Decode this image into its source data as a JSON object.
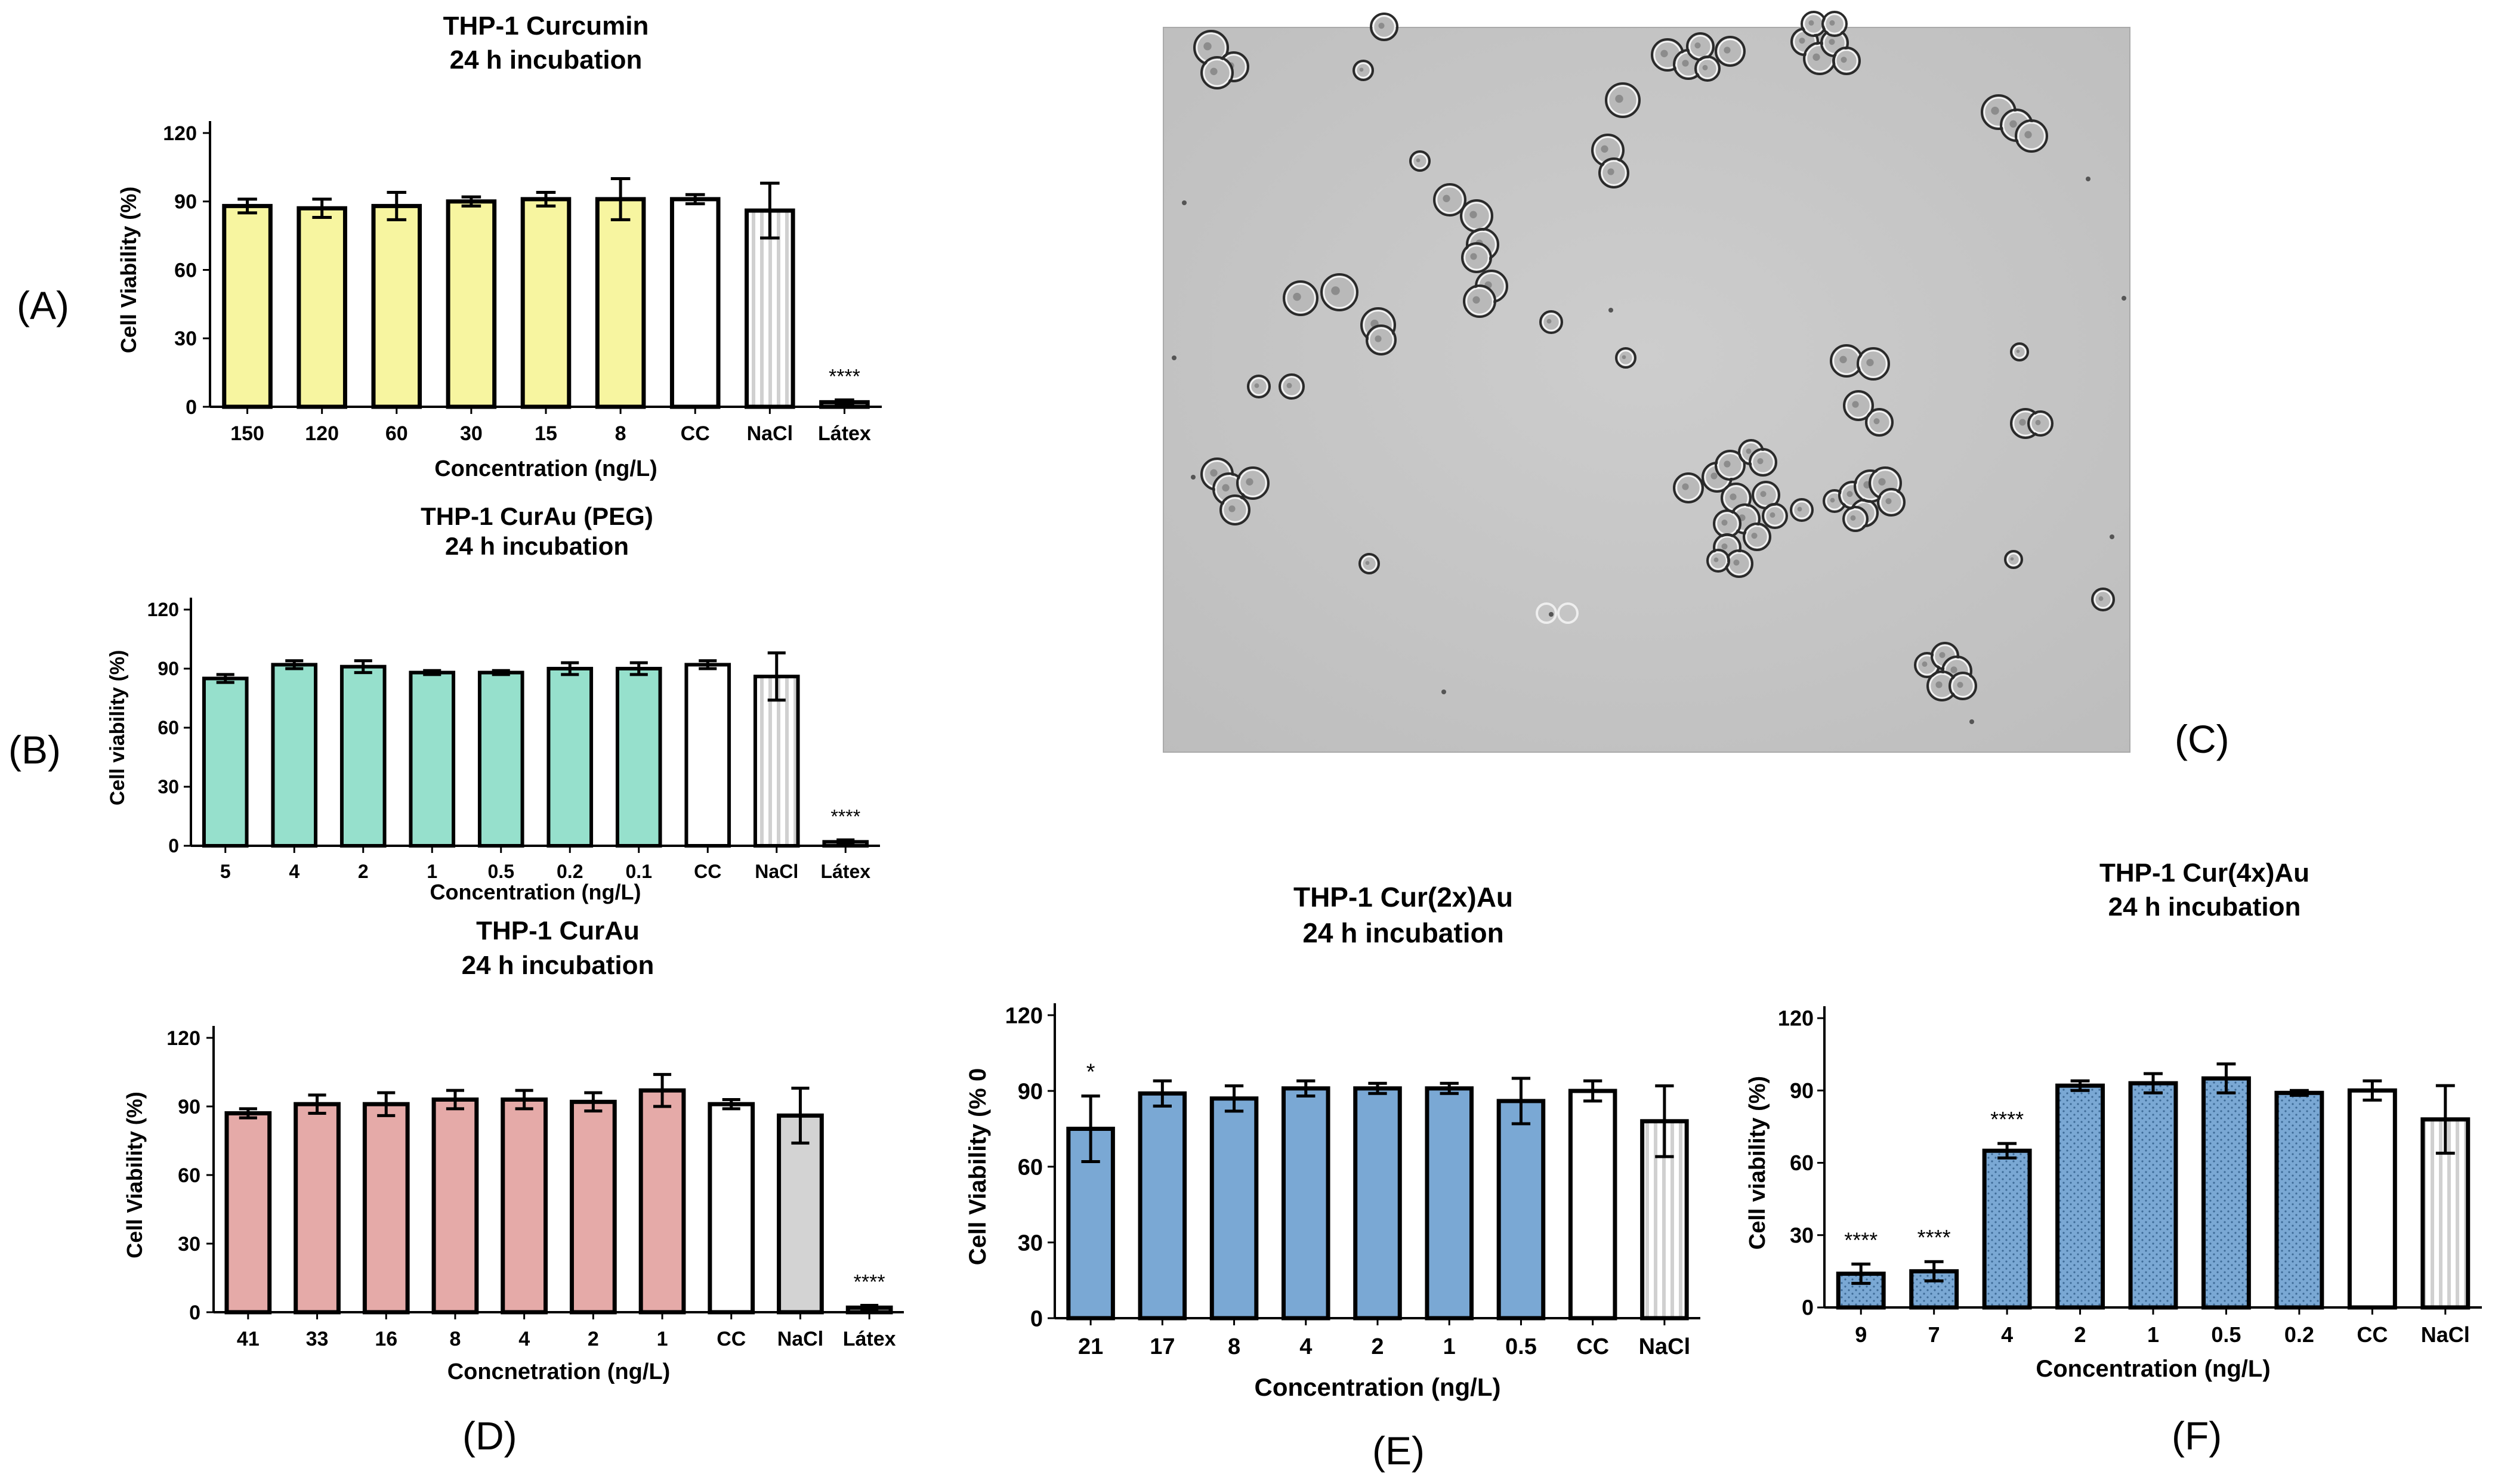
{
  "panel_labels": {
    "A": "(A)",
    "B": "(B)",
    "C": "(C)",
    "D": "(D)",
    "E": "(E)",
    "F": "(F)"
  },
  "colors": {
    "yellow": "#f7f5a0",
    "teal": "#96e0cc",
    "pink": "#e5aaa8",
    "blue": "#7aa8d4",
    "blue_dotted": "#7aa8d4",
    "cc": "#ffffff",
    "nacl_stripe": "#d9d9d9",
    "nacl_grey": "#d3d3d3",
    "micrograph_bg": "#c7c7c7"
  },
  "micrograph": {
    "description_icon": "microscopy-image-thp1-cells"
  },
  "chart_data": [
    {
      "id": "A",
      "type": "bar",
      "title": "THP-1 Curcumin",
      "subtitle": "24 h incubation",
      "xlabel": "Concentration  (ng/L)",
      "ylabel": "Cell Viability (%)",
      "ylim": [
        0,
        120
      ],
      "yticks": [
        "0",
        "30",
        "60",
        "90",
        "120"
      ],
      "categories": [
        "150",
        "120",
        "60",
        "30",
        "15",
        "8",
        "CC",
        "NaCl",
        "Látex"
      ],
      "values": [
        88,
        87,
        88,
        90,
        91,
        91,
        91,
        86,
        2
      ],
      "errors": [
        3,
        4,
        6,
        2,
        3,
        9,
        2,
        12,
        1
      ],
      "fills": [
        "yellow",
        "yellow",
        "yellow",
        "yellow",
        "yellow",
        "yellow",
        "cc",
        "nacl_stripe",
        "cc"
      ],
      "annotations": [
        {
          "index": 8,
          "text": "****"
        }
      ]
    },
    {
      "id": "B",
      "type": "bar",
      "title": "THP-1 CurAu (PEG)",
      "subtitle": "24 h incubation",
      "xlabel": "Concentration (ng/L)",
      "ylabel": "Cell viability (%)",
      "ylim": [
        0,
        120
      ],
      "yticks": [
        "0",
        "30",
        "60",
        "90",
        "120"
      ],
      "categories": [
        "5",
        "4",
        "2",
        "1",
        "0.5",
        "0.2",
        "0.1",
        "CC",
        "NaCl",
        "Látex"
      ],
      "values": [
        85,
        92,
        91,
        88,
        88,
        90,
        90,
        92,
        86,
        2
      ],
      "errors": [
        2,
        2,
        3,
        1,
        1,
        3,
        3,
        2,
        12,
        1
      ],
      "fills": [
        "teal",
        "teal",
        "teal",
        "teal",
        "teal",
        "teal",
        "teal",
        "cc",
        "nacl_stripe",
        "cc"
      ],
      "annotations": [
        {
          "index": 9,
          "text": "****"
        }
      ]
    },
    {
      "id": "D",
      "type": "bar",
      "title": "THP-1 CurAu",
      "subtitle": "24 h incubation",
      "xlabel": "Concnetration (ng/L)",
      "ylabel": "Cell Viability (%)",
      "ylim": [
        0,
        120
      ],
      "yticks": [
        "0",
        "30",
        "60",
        "90",
        "120"
      ],
      "categories": [
        "41",
        "33",
        "16",
        "8",
        "4",
        "2",
        "1",
        "CC",
        "NaCl",
        "Látex"
      ],
      "values": [
        87,
        91,
        91,
        93,
        93,
        92,
        97,
        91,
        86,
        2
      ],
      "errors": [
        2,
        4,
        5,
        4,
        4,
        4,
        7,
        2,
        12,
        1
      ],
      "fills": [
        "pink",
        "pink",
        "pink",
        "pink",
        "pink",
        "pink",
        "pink",
        "cc",
        "nacl_grey",
        "cc"
      ],
      "annotations": [
        {
          "index": 9,
          "text": "****"
        }
      ]
    },
    {
      "id": "E",
      "type": "bar",
      "title": "THP-1 Cur(2x)Au",
      "subtitle": "24 h incubation",
      "xlabel": "Concentration (ng/L)",
      "ylabel": "Cell Viability (% 0",
      "ylim": [
        0,
        120
      ],
      "yticks": [
        "0",
        "30",
        "60",
        "90",
        "120"
      ],
      "categories": [
        "21",
        "17",
        "8",
        "4",
        "2",
        "1",
        "0.5",
        "CC",
        "NaCl"
      ],
      "values": [
        75,
        89,
        87,
        91,
        91,
        91,
        86,
        90,
        78
      ],
      "errors": [
        13,
        5,
        5,
        3,
        2,
        2,
        9,
        4,
        14
      ],
      "fills": [
        "blue",
        "blue",
        "blue",
        "blue",
        "blue",
        "blue",
        "blue",
        "cc",
        "nacl_stripe"
      ],
      "annotations": [
        {
          "index": 0,
          "text": "*"
        }
      ]
    },
    {
      "id": "F",
      "type": "bar",
      "title": "THP-1 Cur(4x)Au",
      "subtitle": "24 h incubation",
      "xlabel": "Concentration (ng/L)",
      "ylabel": "Cell viability  (%)",
      "ylim": [
        0,
        120
      ],
      "yticks": [
        "0",
        "30",
        "60",
        "90",
        "120"
      ],
      "categories": [
        "9",
        "7",
        "4",
        "2",
        "1",
        "0.5",
        "0.2",
        "CC",
        "NaCl"
      ],
      "values": [
        14,
        15,
        65,
        92,
        93,
        95,
        89,
        90,
        78
      ],
      "errors": [
        4,
        4,
        3,
        2,
        4,
        6,
        1,
        4,
        14
      ],
      "fills": [
        "blue_dotted",
        "blue_dotted",
        "blue_dotted",
        "blue_dotted",
        "blue_dotted",
        "blue_dotted",
        "blue_dotted",
        "cc",
        "nacl_stripe"
      ],
      "annotations": [
        {
          "index": 0,
          "text": "****"
        },
        {
          "index": 1,
          "text": "****"
        },
        {
          "index": 2,
          "text": "****"
        }
      ]
    }
  ]
}
